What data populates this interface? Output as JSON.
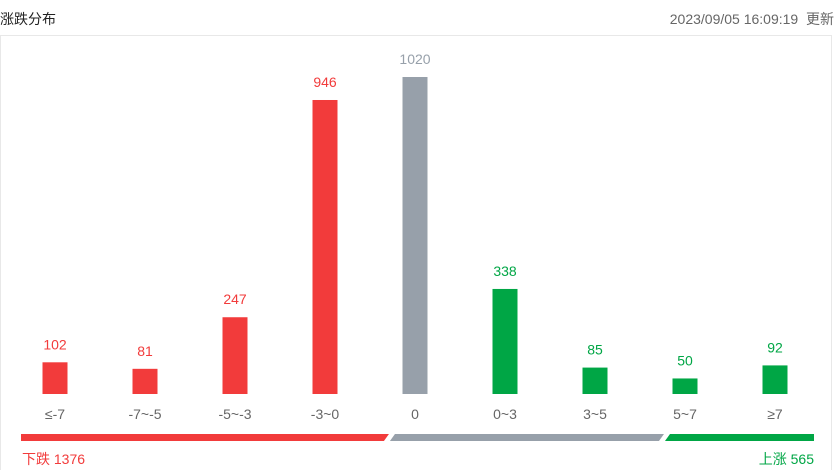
{
  "header": {
    "title": "涨跌分布",
    "timestamp": "2023/09/05 16:09:19",
    "refresh_label": "更新"
  },
  "colors": {
    "down": "#f23b3b",
    "flat": "#97a0aa",
    "up": "#00a645",
    "label": "#666666"
  },
  "chart_data": {
    "type": "bar",
    "title": "涨跌分布",
    "categories": [
      "≤-7",
      "-7~-5",
      "-5~-3",
      "-3~0",
      "0",
      "0~3",
      "3~5",
      "5~7",
      "≥7"
    ],
    "values": [
      102,
      81,
      247,
      946,
      1020,
      338,
      85,
      50,
      92
    ],
    "groups": [
      "down",
      "down",
      "down",
      "down",
      "flat",
      "up",
      "up",
      "up",
      "up"
    ],
    "ylim": [
      0,
      1020
    ],
    "grid": false
  },
  "summary": {
    "down_label": "下跌",
    "down_total": 1376,
    "flat_total": 1020,
    "up_label": "上涨",
    "up_total": 565
  }
}
